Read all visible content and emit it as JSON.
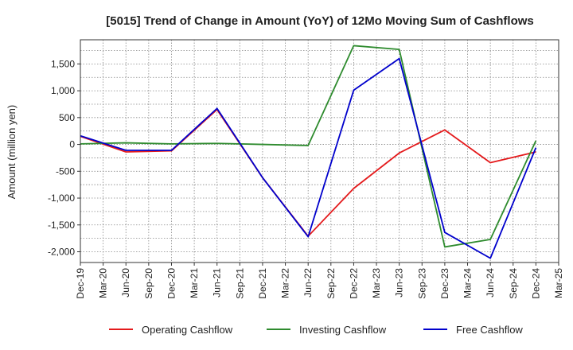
{
  "chart_data": {
    "type": "line",
    "title": "[5015]  Trend of Change in Amount (YoY) of 12Mo Moving Sum of Cashflows",
    "xlabel": "",
    "ylabel": "Amount (million yen)",
    "ylim": [
      -2200,
      1950
    ],
    "yticks": [
      1500,
      1000,
      500,
      0,
      -500,
      -1000,
      -1500,
      -2000
    ],
    "ytick_labels": [
      "1,500",
      "1,000",
      "500",
      "0",
      "-500",
      "-1,000",
      "-1,500",
      "-2,000"
    ],
    "categories": [
      "Dec-19",
      "Mar-20",
      "Jun-20",
      "Sep-20",
      "Dec-20",
      "Mar-21",
      "Jun-21",
      "Sep-21",
      "Dec-21",
      "Mar-22",
      "Jun-22",
      "Sep-22",
      "Dec-22",
      "Mar-23",
      "Jun-23",
      "Sep-23",
      "Dec-23",
      "Mar-24",
      "Jun-24",
      "Sep-24",
      "Dec-24",
      "Mar-25"
    ],
    "grid": true,
    "legend_position": "bottom",
    "series": [
      {
        "name": "Operating Cashflow",
        "color": "#e41a1c",
        "points": [
          {
            "x": "Dec-19",
            "y": 150
          },
          {
            "x": "Jun-20",
            "y": -140
          },
          {
            "x": "Dec-20",
            "y": -120
          },
          {
            "x": "Jun-21",
            "y": 650
          },
          {
            "x": "Dec-21",
            "y": -620
          },
          {
            "x": "Jun-22",
            "y": -1710
          },
          {
            "x": "Dec-22",
            "y": -820
          },
          {
            "x": "Jun-23",
            "y": -160
          },
          {
            "x": "Dec-23",
            "y": 270
          },
          {
            "x": "Jun-24",
            "y": -340
          },
          {
            "x": "Dec-24",
            "y": -140
          }
        ]
      },
      {
        "name": "Investing Cashflow",
        "color": "#2e8b2e",
        "points": [
          {
            "x": "Dec-19",
            "y": 10
          },
          {
            "x": "Jun-20",
            "y": 30
          },
          {
            "x": "Dec-20",
            "y": 10
          },
          {
            "x": "Jun-21",
            "y": 20
          },
          {
            "x": "Dec-21",
            "y": 0
          },
          {
            "x": "Jun-22",
            "y": -20
          },
          {
            "x": "Dec-22",
            "y": 1840
          },
          {
            "x": "Jun-23",
            "y": 1770
          },
          {
            "x": "Dec-23",
            "y": -1910
          },
          {
            "x": "Jun-24",
            "y": -1770
          },
          {
            "x": "Dec-24",
            "y": 70
          }
        ]
      },
      {
        "name": "Free Cashflow",
        "color": "#0000cc",
        "points": [
          {
            "x": "Dec-19",
            "y": 160
          },
          {
            "x": "Jun-20",
            "y": -110
          },
          {
            "x": "Dec-20",
            "y": -110
          },
          {
            "x": "Jun-21",
            "y": 670
          },
          {
            "x": "Dec-21",
            "y": -620
          },
          {
            "x": "Jun-22",
            "y": -1720
          },
          {
            "x": "Dec-22",
            "y": 1010
          },
          {
            "x": "Jun-23",
            "y": 1600
          },
          {
            "x": "Dec-23",
            "y": -1640
          },
          {
            "x": "Jun-24",
            "y": -2120
          },
          {
            "x": "Dec-24",
            "y": -60
          }
        ]
      }
    ]
  }
}
